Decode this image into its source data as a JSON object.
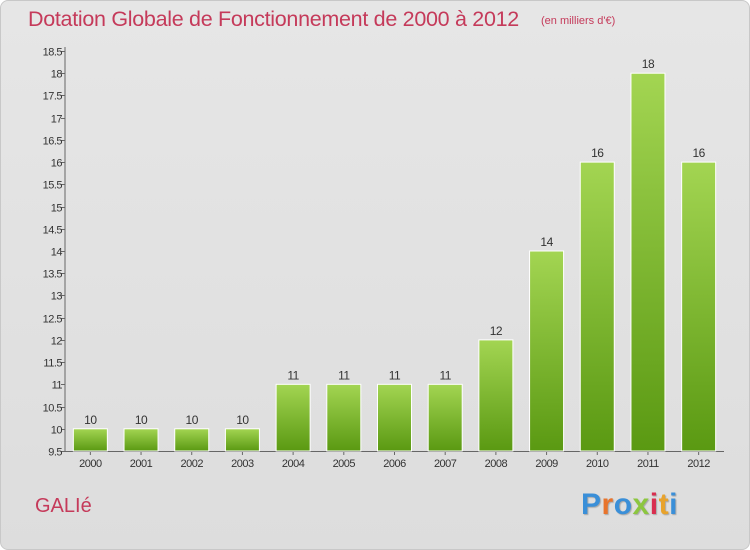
{
  "header": {
    "title": "Dotation Globale de Fonctionnement de 2000 à 2012",
    "unit": "(en milliers d'€)"
  },
  "footer": {
    "commune": "GALIé",
    "brand": "Proxiti"
  },
  "colors": {
    "title": "#c53a5a",
    "bar_light": "#9fd24e",
    "bar_dark": "#5e9e14",
    "background": "#e2e2e2"
  },
  "chart_data": {
    "type": "bar",
    "title": "Dotation Globale de Fonctionnement de 2000 à 2012",
    "subtitle": "(en milliers d'€)",
    "xlabel": "",
    "ylabel": "",
    "categories": [
      "2000",
      "2001",
      "2002",
      "2003",
      "2004",
      "2005",
      "2006",
      "2007",
      "2008",
      "2009",
      "2010",
      "2011",
      "2012"
    ],
    "values": [
      10,
      10,
      10,
      10,
      11,
      11,
      11,
      11,
      12,
      14,
      16,
      18,
      16
    ],
    "data_labels": [
      "10",
      "10",
      "10",
      "10",
      "11",
      "11",
      "11",
      "11",
      "12",
      "14",
      "16",
      "18",
      "16"
    ],
    "ylim": [
      9.5,
      18.5
    ],
    "yticks": [
      9.5,
      10,
      10.5,
      11,
      11.5,
      12,
      12.5,
      13,
      13.5,
      14,
      14.5,
      15,
      15.5,
      16,
      16.5,
      17,
      17.5,
      18,
      18.5
    ],
    "ytick_labels": [
      "9.5",
      "10",
      "10.5",
      "11",
      "11.5",
      "12",
      "12.5",
      "13",
      "13.5",
      "14",
      "14.5",
      "15",
      "15.5",
      "16",
      "16.5",
      "17",
      "17.5",
      "18",
      "18.5"
    ],
    "grid": false,
    "legend": "none"
  }
}
